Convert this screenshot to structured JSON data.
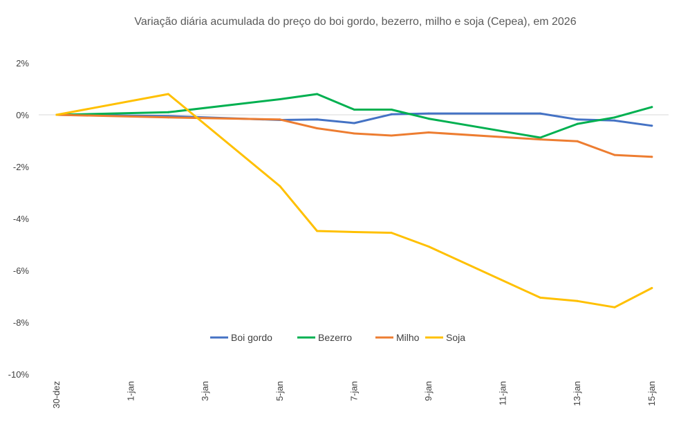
{
  "chart_data": {
    "type": "line",
    "title": "Variação diária acumulada do preço do boi gordo, bezerro, milho e soja (Cepea), em 2026",
    "xlabel": "",
    "ylabel": "",
    "ylim": [
      -10,
      2
    ],
    "y_ticks": [
      2,
      0,
      -2,
      -4,
      -6,
      -8,
      -10
    ],
    "y_tick_labels": [
      "2%",
      "0%",
      "-2%",
      "-4%",
      "-6%",
      "-8%",
      "-10%"
    ],
    "x_tick_labels": [
      "30-dez",
      "1-jan",
      "3-jan",
      "5-jan",
      "7-jan",
      "9-jan",
      "11-jan",
      "13-jan",
      "15-jan"
    ],
    "x_tick_days": [
      0,
      2,
      4,
      6,
      8,
      10,
      12,
      14,
      16
    ],
    "x_days": [
      0,
      3,
      6,
      7,
      8,
      9,
      10,
      13,
      14,
      15,
      16
    ],
    "legend_position": "bottom-center",
    "series": [
      {
        "name": "Boi gordo",
        "color": "#4472C4",
        "values": [
          0,
          -0.05,
          -0.2,
          -0.18,
          -0.32,
          0.02,
          0.05,
          0.05,
          -0.18,
          -0.22,
          -0.42
        ]
      },
      {
        "name": "Bezerro",
        "color": "#00B050",
        "values": [
          0,
          0.1,
          0.6,
          0.8,
          0.2,
          0.2,
          -0.15,
          -0.88,
          -0.35,
          -0.1,
          0.3
        ]
      },
      {
        "name": "Milho",
        "color": "#ED7D31",
        "values": [
          0,
          -0.1,
          -0.18,
          -0.52,
          -0.72,
          -0.8,
          -0.68,
          -0.95,
          -1.02,
          -1.55,
          -1.62
        ]
      },
      {
        "name": "Soja",
        "color": "#FFC000",
        "values": [
          0,
          0.8,
          -2.75,
          -4.48,
          -4.52,
          -4.55,
          -5.08,
          -7.05,
          -7.18,
          -7.42,
          -6.68
        ]
      }
    ]
  }
}
